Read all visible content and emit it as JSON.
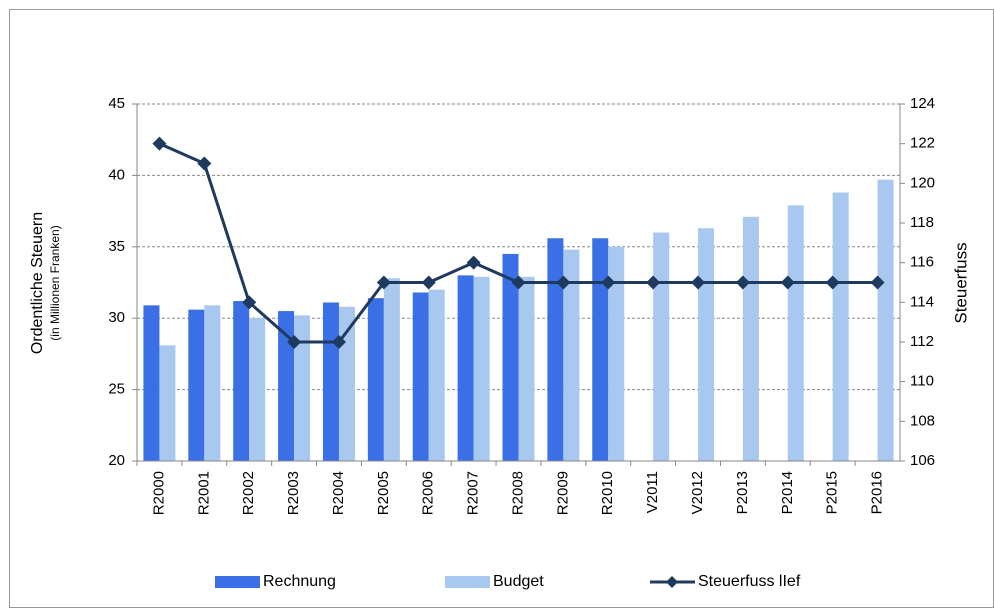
{
  "chart_data": {
    "type": "bar",
    "y_label": "Ordentliche Steuern",
    "y_sublabel": "(in Millionen Franken)",
    "y2_label": "Steuerfuss",
    "categories": [
      "R2000",
      "R2001",
      "R2002",
      "R2003",
      "R2004",
      "R2005",
      "R2006",
      "R2007",
      "R2008",
      "R2009",
      "R2010",
      "V2011",
      "V2012",
      "P2013",
      "P2014",
      "P2015",
      "P2016"
    ],
    "series": [
      {
        "name": "Rechnung",
        "color": "#3b6fe6",
        "type": "bar",
        "values": [
          30.9,
          30.6,
          31.2,
          30.5,
          31.1,
          31.4,
          31.8,
          33.0,
          34.5,
          35.6,
          35.6,
          null,
          null,
          null,
          null,
          null,
          null
        ]
      },
      {
        "name": "Budget",
        "color": "#a9c8ef",
        "type": "bar",
        "values": [
          28.1,
          30.9,
          30.0,
          30.2,
          30.8,
          32.8,
          32.0,
          32.9,
          32.9,
          34.8,
          35.0,
          36.0,
          36.3,
          37.1,
          37.9,
          38.8,
          39.7
        ]
      },
      {
        "name": "Steuerfuss lIef",
        "color": "#1f3a5f",
        "type": "line",
        "axis": "y2",
        "values": [
          122,
          121,
          114,
          112,
          112,
          115,
          115,
          116,
          115,
          115,
          115,
          115,
          115,
          115,
          115,
          115,
          115
        ]
      }
    ],
    "ylim": [
      20,
      45
    ],
    "yticks": [
      20,
      25,
      30,
      35,
      40,
      45
    ],
    "y2lim": [
      106,
      124
    ],
    "y2ticks": [
      106,
      108,
      110,
      112,
      114,
      116,
      118,
      120,
      122,
      124
    ],
    "grid": true,
    "legend": "bottom"
  }
}
